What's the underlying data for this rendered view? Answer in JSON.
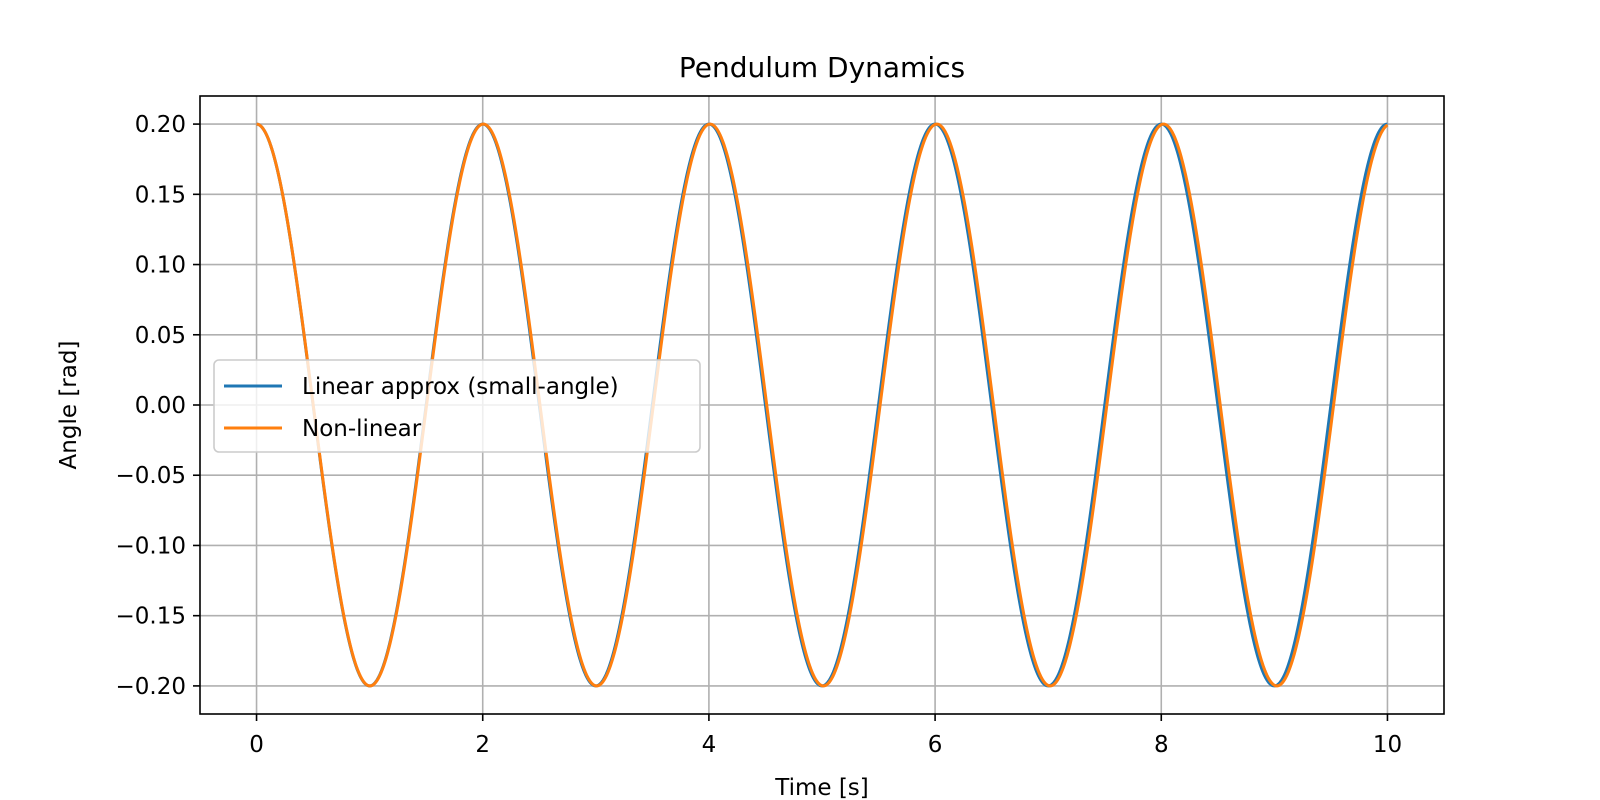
{
  "chart_data": {
    "type": "line",
    "title": "Pendulum Dynamics",
    "xlabel": "Time [s]",
    "ylabel": "Angle [rad]",
    "xlim": [
      -0.5,
      10.5
    ],
    "ylim": [
      -0.22,
      0.22
    ],
    "x_ticks": [
      0,
      2,
      4,
      6,
      8,
      10
    ],
    "x_tick_labels": [
      "0",
      "2",
      "4",
      "6",
      "8",
      "10"
    ],
    "y_ticks": [
      0.2,
      0.15,
      0.1,
      0.05,
      0.0,
      -0.05,
      -0.1,
      -0.15,
      -0.2
    ],
    "y_tick_labels": [
      "0.20",
      "0.15",
      "0.10",
      "0.05",
      "0.00",
      "−0.05",
      "−0.10",
      "−0.15",
      "−0.20"
    ],
    "grid": true,
    "legend_position": "center-left",
    "series": [
      {
        "name": "Linear approx (small-angle)",
        "color": "#1f77b4",
        "amplitude": 0.2,
        "period": 2.0,
        "x_range": [
          0,
          10
        ]
      },
      {
        "name": "Non-linear",
        "color": "#ff7f0e",
        "amplitude": 0.2,
        "period": 2.005,
        "x_range": [
          0,
          10
        ]
      }
    ]
  }
}
